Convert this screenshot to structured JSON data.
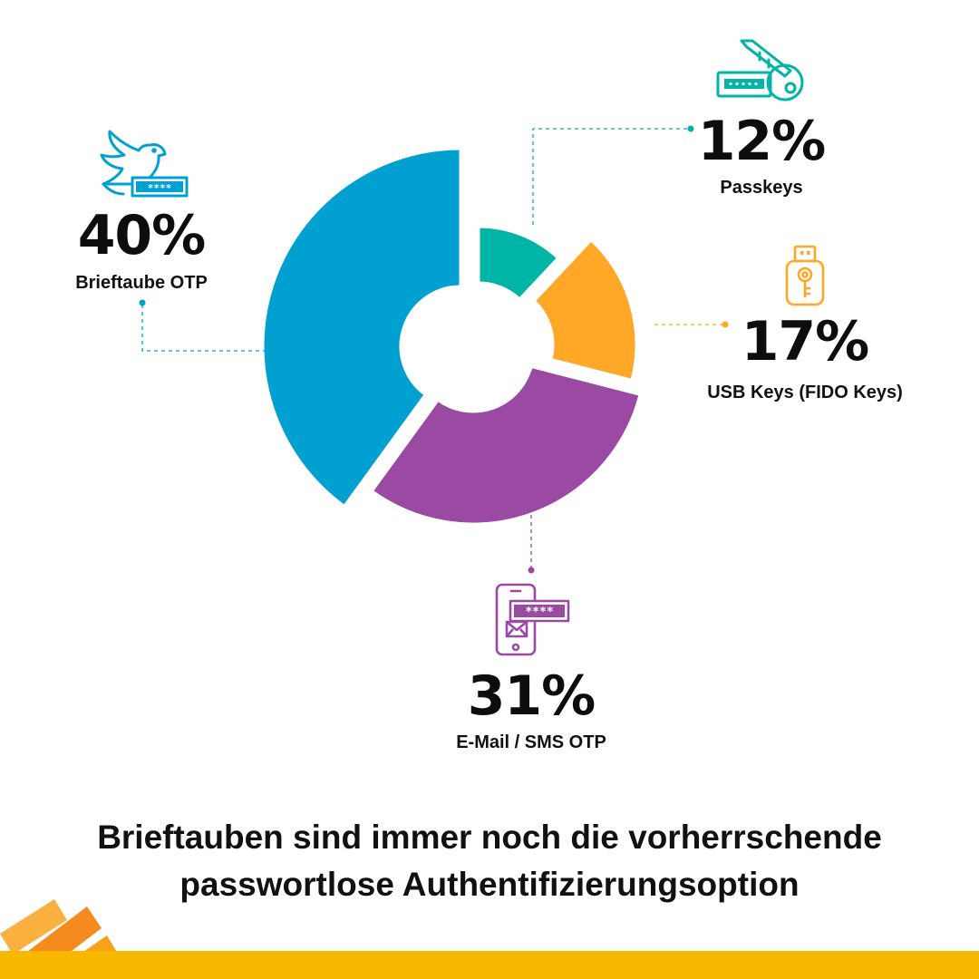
{
  "colors": {
    "passkeys": "#00b4a6",
    "usb": "#ffa726",
    "email_sms": "#9b4aa4",
    "brieftaube": "#00a0d0",
    "bar": "#f8b800",
    "stripes": "#f58a1f"
  },
  "chart_data": {
    "type": "pie",
    "style": "exploded donut, radius varies by slice",
    "categories": [
      "Passkeys",
      "USB Keys (FIDO Keys)",
      "E-Mail / SMS OTP",
      "Brieftaube OTP"
    ],
    "values": [
      12,
      17,
      31,
      40
    ],
    "labels": [
      "12%",
      "17%",
      "31%",
      "40%"
    ]
  },
  "icons": {
    "passkeys": "key-and-password-field-icon",
    "usb": "usb-key-icon",
    "email_sms": "phone-with-password-icon",
    "brieftaube": "dove-with-password-icon"
  },
  "headline": {
    "line1": "Brieftauben sind immer noch die vorherrschende",
    "line2": "passwortlose Authentifizierungsoption"
  }
}
